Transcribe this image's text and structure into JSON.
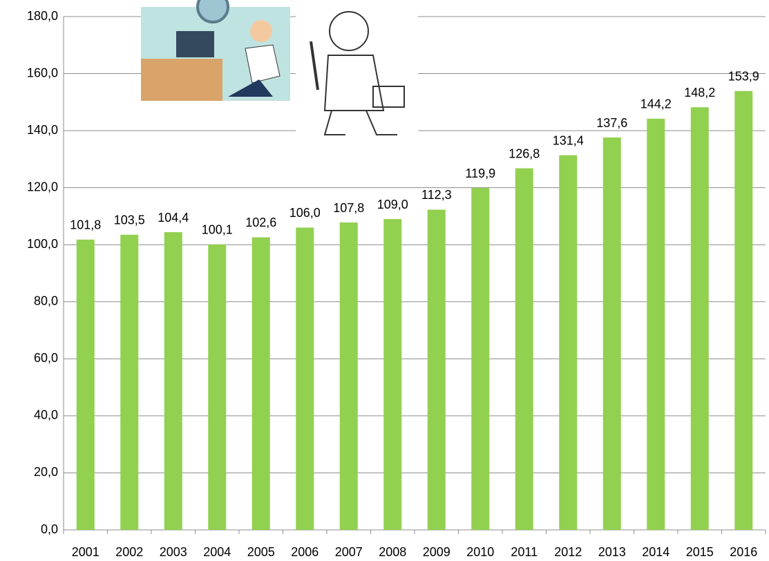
{
  "chart_data": {
    "type": "bar",
    "categories": [
      "2001",
      "2002",
      "2003",
      "2004",
      "2005",
      "2006",
      "2007",
      "2008",
      "2009",
      "2010",
      "2011",
      "2012",
      "2013",
      "2014",
      "2015",
      "2016"
    ],
    "values": [
      101.8,
      103.5,
      104.4,
      100.1,
      102.6,
      106.0,
      107.8,
      109.0,
      112.3,
      119.9,
      126.8,
      131.4,
      137.6,
      144.2,
      148.2,
      153.9
    ],
    "value_labels": [
      "101,8",
      "103,5",
      "104,4",
      "100,1",
      "102,6",
      "106,0",
      "107,8",
      "109,0",
      "112,3",
      "119,9",
      "126,8",
      "131,4",
      "137,6",
      "144,2",
      "148,2",
      "153,9"
    ],
    "color": "#92d050",
    "ylim": [
      0,
      180
    ],
    "yticks": [
      {
        "value": 0,
        "label": "0,0"
      },
      {
        "value": 20,
        "label": "20,0"
      },
      {
        "value": 40,
        "label": "40,0"
      },
      {
        "value": 60,
        "label": "60,0"
      },
      {
        "value": 80,
        "label": "80,0"
      },
      {
        "value": 100,
        "label": "100,0"
      },
      {
        "value": 120,
        "label": "120,0"
      },
      {
        "value": 140,
        "label": "140,0"
      },
      {
        "value": 160,
        "label": "160,0"
      },
      {
        "value": 180,
        "label": "180,0"
      }
    ],
    "grid": true
  }
}
